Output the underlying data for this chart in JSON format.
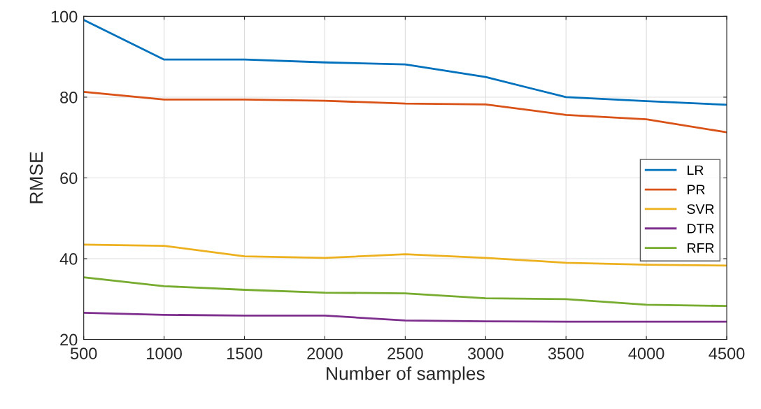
{
  "chart_data": {
    "type": "line",
    "xlabel": "Number of samples",
    "ylabel": "RMSE",
    "x": [
      500,
      1000,
      1500,
      2000,
      2500,
      3000,
      3500,
      4000,
      4500
    ],
    "xlim": [
      500,
      4500
    ],
    "xticks": [
      500,
      1000,
      1500,
      2000,
      2500,
      3000,
      3500,
      4000,
      4500
    ],
    "ylim": [
      20,
      100
    ],
    "yticks": [
      20,
      40,
      60,
      80,
      100
    ],
    "grid": true,
    "legend": "right",
    "series": [
      {
        "name": "LR",
        "color": "#0072bd",
        "values": [
          99.1,
          89.3,
          89.3,
          88.6,
          88.1,
          85.0,
          80.0,
          79.0,
          78.1
        ]
      },
      {
        "name": "PR",
        "color": "#d95319",
        "values": [
          81.3,
          79.4,
          79.4,
          79.1,
          78.4,
          78.2,
          75.6,
          74.5,
          71.3
        ]
      },
      {
        "name": "SVR",
        "color": "#edb120",
        "values": [
          43.5,
          43.2,
          40.6,
          40.2,
          41.1,
          40.2,
          39.0,
          38.5,
          38.3
        ]
      },
      {
        "name": "DTR",
        "color": "#7e2f8e",
        "values": [
          26.6,
          26.1,
          25.9,
          25.9,
          24.7,
          24.5,
          24.4,
          24.4,
          24.4
        ]
      },
      {
        "name": "RFR",
        "color": "#77ac30",
        "values": [
          35.4,
          33.2,
          32.3,
          31.6,
          31.4,
          30.2,
          30.0,
          28.6,
          28.3
        ]
      }
    ]
  }
}
